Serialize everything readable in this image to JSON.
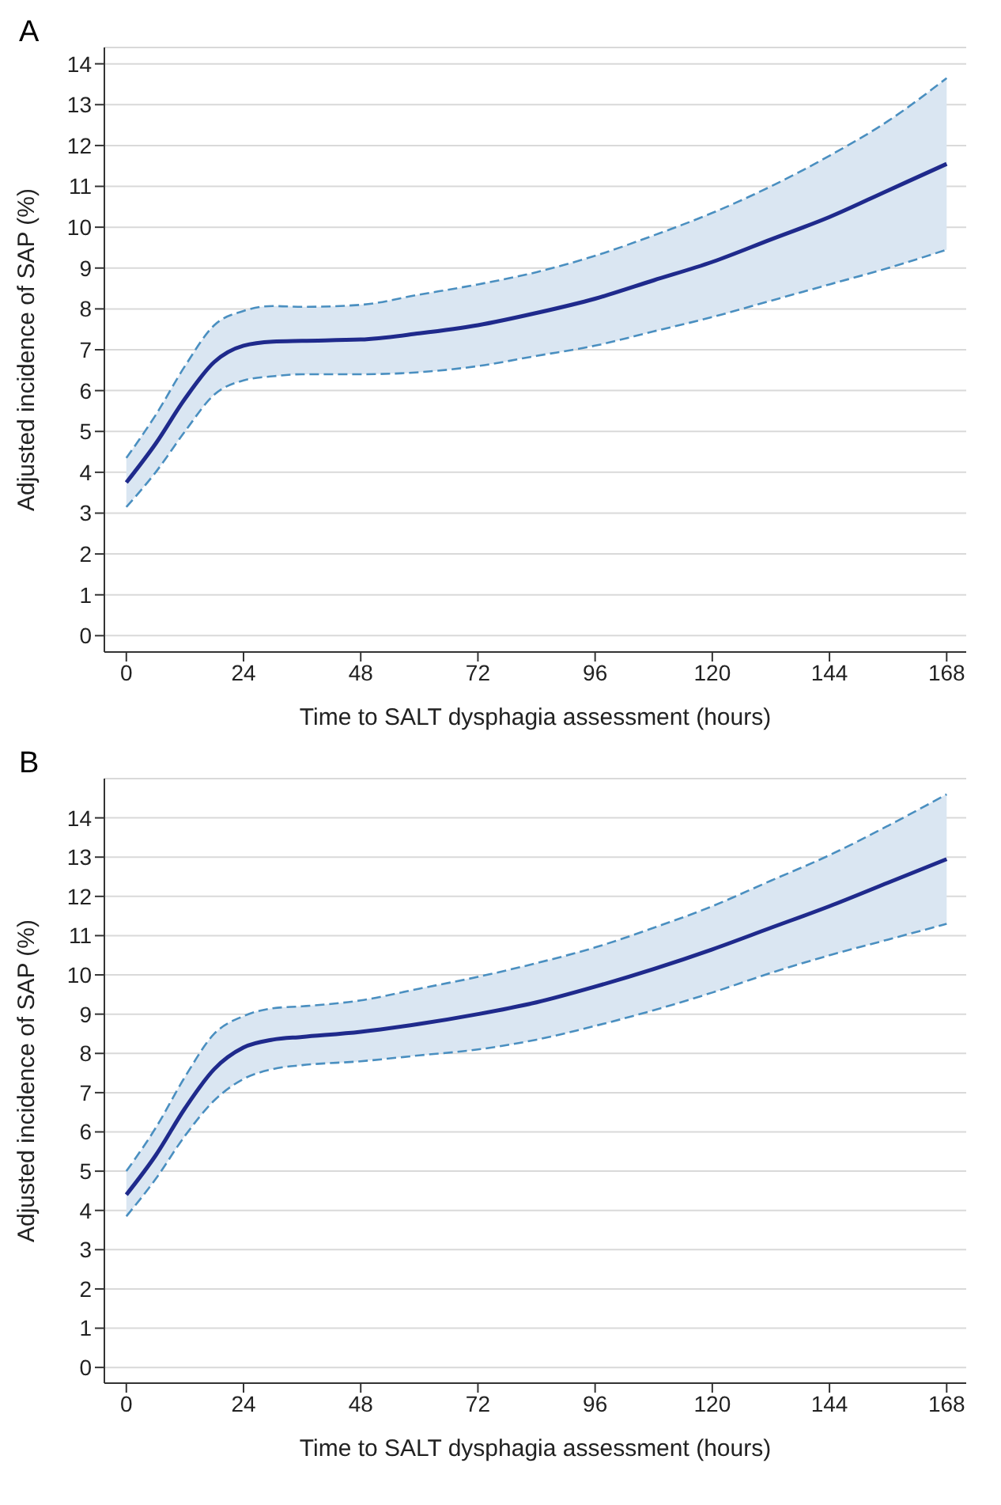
{
  "chart_data": [
    {
      "type": "line",
      "title": "A",
      "xlabel": "Time to SALT dysphagia assessment (hours)",
      "ylabel": "Adjusted incidence of SAP  (%)",
      "x": [
        0,
        6,
        12,
        18,
        24,
        30,
        36,
        48,
        60,
        72,
        84,
        96,
        108,
        120,
        132,
        144,
        156,
        168
      ],
      "xlim": [
        -4.5,
        172
      ],
      "xticks": [
        0,
        24,
        48,
        72,
        96,
        120,
        144,
        168
      ],
      "ylim": [
        -0.4,
        14.4
      ],
      "yticks": [
        0,
        1,
        2,
        3,
        4,
        5,
        6,
        7,
        8,
        9,
        10,
        11,
        12,
        13,
        14
      ],
      "grid": "y",
      "legend": false,
      "marker": "none",
      "series": [
        {
          "color": "#1f2a8c",
          "line_style": "solid",
          "values": [
            3.75,
            4.7,
            5.8,
            6.7,
            7.1,
            7.2,
            7.22,
            7.25,
            7.4,
            7.6,
            7.9,
            8.25,
            8.7,
            9.15,
            9.7,
            10.25,
            10.9,
            11.55
          ],
          "lower": [
            3.15,
            4.0,
            5.0,
            5.9,
            6.25,
            6.35,
            6.4,
            6.4,
            6.45,
            6.6,
            6.85,
            7.1,
            7.45,
            7.8,
            8.2,
            8.6,
            9.0,
            9.45
          ],
          "upper": [
            4.35,
            5.4,
            6.6,
            7.6,
            7.95,
            8.07,
            8.05,
            8.1,
            8.35,
            8.6,
            8.9,
            9.3,
            9.8,
            10.35,
            11.0,
            11.75,
            12.6,
            13.65
          ]
        },
        {
          "color": "#4a8fc0",
          "line_style": "dashed",
          "values": [
            3.15,
            4.0,
            5.0,
            5.9,
            6.25,
            6.35,
            6.4,
            6.4,
            6.45,
            6.6,
            6.85,
            7.1,
            7.45,
            7.8,
            8.2,
            8.6,
            9.0,
            9.45
          ]
        },
        {
          "color": "#4a8fc0",
          "line_style": "dashed",
          "values": [
            4.35,
            5.4,
            6.6,
            7.6,
            7.95,
            8.07,
            8.05,
            8.1,
            8.35,
            8.6,
            8.9,
            9.3,
            9.8,
            10.35,
            11.0,
            11.75,
            12.6,
            13.65
          ]
        }
      ]
    },
    {
      "type": "line",
      "title": "B",
      "xlabel": "Time to SALT dysphagia assessment (hours)",
      "ylabel": "Adjusted incidence of SAP  (%)",
      "x": [
        0,
        6,
        12,
        18,
        24,
        30,
        36,
        48,
        60,
        72,
        84,
        96,
        108,
        120,
        132,
        144,
        156,
        168
      ],
      "xlim": [
        -4.5,
        172
      ],
      "xticks": [
        0,
        24,
        48,
        72,
        96,
        120,
        144,
        168
      ],
      "ylim": [
        -0.4,
        15.0
      ],
      "yticks": [
        0,
        1,
        2,
        3,
        4,
        5,
        6,
        7,
        8,
        9,
        10,
        11,
        12,
        13,
        14
      ],
      "grid": "y",
      "legend": false,
      "marker": "none",
      "series": [
        {
          "color": "#1f2a8c",
          "line_style": "solid",
          "values": [
            4.4,
            5.4,
            6.6,
            7.6,
            8.15,
            8.35,
            8.42,
            8.55,
            8.75,
            9.0,
            9.3,
            9.7,
            10.15,
            10.65,
            11.2,
            11.75,
            12.35,
            12.95
          ],
          "lower": [
            3.85,
            4.8,
            5.9,
            6.8,
            7.35,
            7.6,
            7.7,
            7.8,
            7.95,
            8.1,
            8.35,
            8.7,
            9.1,
            9.55,
            10.05,
            10.5,
            10.9,
            11.3
          ],
          "upper": [
            5.0,
            6.1,
            7.4,
            8.5,
            8.95,
            9.15,
            9.2,
            9.35,
            9.65,
            9.95,
            10.3,
            10.7,
            11.2,
            11.75,
            12.4,
            13.05,
            13.8,
            14.6
          ]
        },
        {
          "color": "#4a8fc0",
          "line_style": "dashed",
          "values": [
            3.85,
            4.8,
            5.9,
            6.8,
            7.35,
            7.6,
            7.7,
            7.8,
            7.95,
            8.1,
            8.35,
            8.7,
            9.1,
            9.55,
            10.05,
            10.5,
            10.9,
            11.3
          ]
        },
        {
          "color": "#4a8fc0",
          "line_style": "dashed",
          "values": [
            5.0,
            6.1,
            7.4,
            8.5,
            8.95,
            9.15,
            9.2,
            9.35,
            9.65,
            9.95,
            10.3,
            10.7,
            11.2,
            11.75,
            12.4,
            13.05,
            13.8,
            14.6
          ]
        }
      ]
    }
  ]
}
